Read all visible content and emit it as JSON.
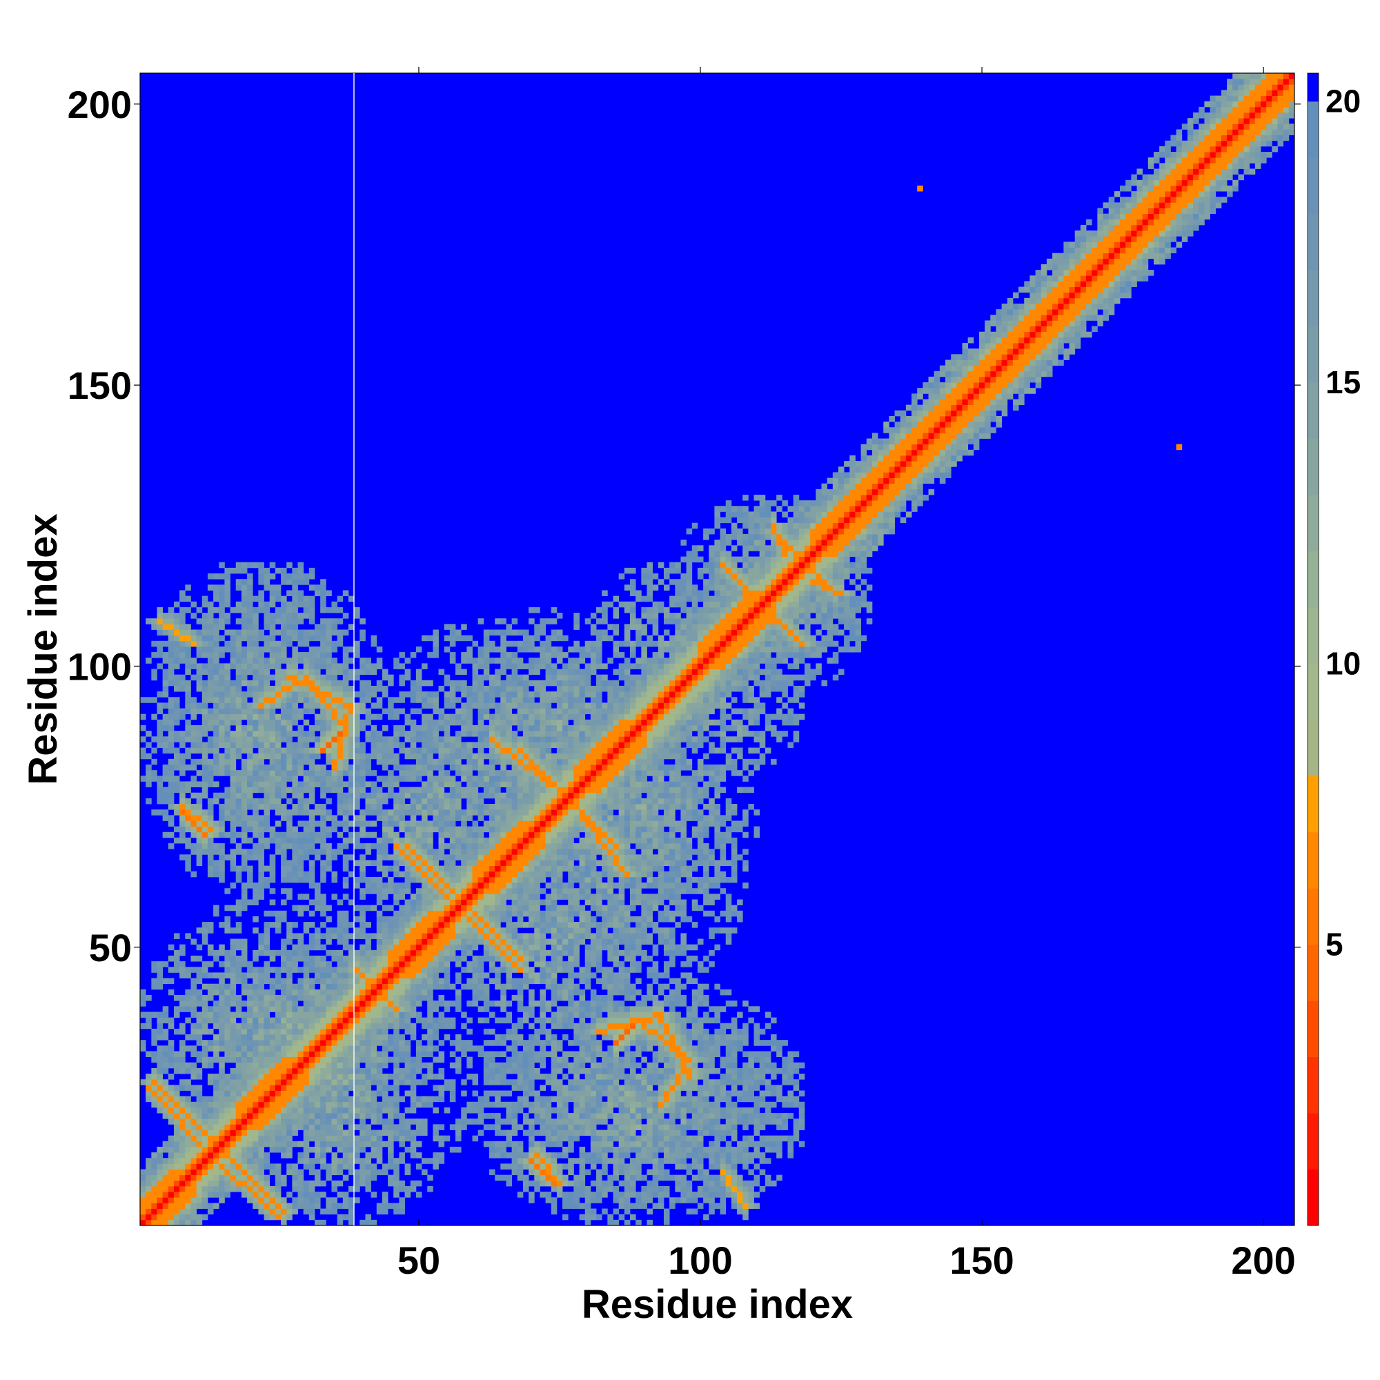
{
  "chart_data": {
    "type": "heatmap",
    "title": "",
    "xlabel": "Residue index",
    "ylabel": "Residue index",
    "n_residues": 205,
    "xlim": [
      1,
      205
    ],
    "ylim": [
      1,
      205
    ],
    "x_ticks": [
      50,
      100,
      150,
      200
    ],
    "y_ticks": [
      50,
      100,
      150,
      200
    ],
    "colorbar": {
      "range": [
        0,
        20.5
      ],
      "ticks": [
        5,
        10,
        15,
        20
      ],
      "levels": [
        {
          "from": 0,
          "to": 1,
          "color": "#ff0000"
        },
        {
          "from": 1,
          "to": 2,
          "color": "#ff1a00"
        },
        {
          "from": 2,
          "to": 3,
          "color": "#ff3300"
        },
        {
          "from": 3,
          "to": 4,
          "color": "#ff4d00"
        },
        {
          "from": 4,
          "to": 5,
          "color": "#ff6600"
        },
        {
          "from": 5,
          "to": 6,
          "color": "#ff7700"
        },
        {
          "from": 6,
          "to": 7,
          "color": "#ff8800"
        },
        {
          "from": 7,
          "to": 8,
          "color": "#ffa000"
        },
        {
          "from": 8,
          "to": 9,
          "color": "#a6b586"
        },
        {
          "from": 9,
          "to": 10,
          "color": "#a3b78c"
        },
        {
          "from": 10,
          "to": 11,
          "color": "#9db590"
        },
        {
          "from": 11,
          "to": 12,
          "color": "#96b196"
        },
        {
          "from": 12,
          "to": 13,
          "color": "#8fab9b"
        },
        {
          "from": 13,
          "to": 14,
          "color": "#88a6a0"
        },
        {
          "from": 14,
          "to": 15,
          "color": "#81a1a5"
        },
        {
          "from": 15,
          "to": 16,
          "color": "#7b9daa"
        },
        {
          "from": 16,
          "to": 17,
          "color": "#7599ae"
        },
        {
          "from": 17,
          "to": 18,
          "color": "#6f95b2"
        },
        {
          "from": 18,
          "to": 19,
          "color": "#6992b6"
        },
        {
          "from": 19,
          "to": 20,
          "color": "#6390ba"
        },
        {
          "from": 20,
          "to": 20.5,
          "color": "#0000ff"
        }
      ]
    },
    "background_color": "#0000ff",
    "contact_map": {
      "diagonal_band": {
        "from": 1,
        "to": 205
      },
      "helices": [
        {
          "start": 1,
          "end": 10
        },
        {
          "start": 18,
          "end": 30
        },
        {
          "start": 45,
          "end": 56
        },
        {
          "start": 60,
          "end": 72
        },
        {
          "start": 78,
          "end": 90
        },
        {
          "start": 100,
          "end": 113
        },
        {
          "start": 120,
          "end": 205
        }
      ],
      "strand_contacts": [
        {
          "i": [
            3,
            14
          ],
          "j": [
            26,
            15
          ],
          "color": "#ff8800"
        },
        {
          "i": [
            13,
            25
          ],
          "j": [
            13,
            2
          ],
          "color": "#ff8800"
        },
        {
          "i": [
            48,
            57
          ],
          "j": [
            68,
            59
          ],
          "color": "#ff8800"
        },
        {
          "i": [
            57,
            68
          ],
          "j": [
            57,
            46
          ],
          "color": "#ff8800"
        },
        {
          "i": [
            68,
            77
          ],
          "j": [
            85,
            76
          ],
          "color": "#ff8800"
        },
        {
          "i": [
            77,
            87
          ],
          "j": [
            76,
            63
          ],
          "color": "#ff8800"
        },
        {
          "i": [
            105,
            112
          ],
          "j": [
            117,
            110
          ],
          "color": "#ff8800"
        },
        {
          "i": [
            110,
            118
          ],
          "j": [
            111,
            104
          ],
          "color": "#ff8800"
        },
        {
          "i": [
            113,
            117
          ],
          "j": [
            124,
            120
          ],
          "color": "#ff8800"
        },
        {
          "i": [
            120,
            125
          ],
          "j": [
            115,
            113
          ],
          "color": "#ff8800"
        },
        {
          "i": [
            22,
            30
          ],
          "j": [
            93,
            98
          ],
          "color": "#ff8800"
        },
        {
          "i": [
            30,
            36
          ],
          "j": [
            98,
            90
          ],
          "color": "#ff8800"
        },
        {
          "i": [
            33,
            36
          ],
          "j": [
            85,
            88
          ],
          "color": "#ff6600"
        },
        {
          "i": [
            8,
            13
          ],
          "j": [
            75,
            71
          ],
          "color": "#ff8800"
        },
        {
          "i": [
            82,
            93
          ],
          "j": [
            35,
            38
          ],
          "color": "#ff8800"
        },
        {
          "i": [
            93,
            98
          ],
          "j": [
            38,
            27
          ],
          "color": "#ff8800"
        },
        {
          "i": [
            70,
            74
          ],
          "j": [
            12,
            8
          ],
          "color": "#ff7700"
        },
        {
          "i": [
            39,
            44
          ],
          "j": [
            46,
            42
          ],
          "color": "#ff8800"
        },
        {
          "i": [
            4,
            10
          ],
          "j": [
            108,
            104
          ],
          "color": "#ffa000"
        }
      ],
      "contact_blobs": [
        {
          "x": [
            1,
            40
          ],
          "y": [
            60,
            118
          ]
        },
        {
          "x": [
            1,
            52
          ],
          "y": [
            10,
            60
          ]
        },
        {
          "x": [
            20,
            48
          ],
          "y": [
            3,
            30
          ]
        },
        {
          "x": [
            40,
            90
          ],
          "y": [
            60,
            108
          ]
        },
        {
          "x": [
            60,
            118
          ],
          "y": [
            3,
            45
          ]
        },
        {
          "x": [
            52,
            95
          ],
          "y": [
            25,
            75
          ]
        },
        {
          "x": [
            70,
            110
          ],
          "y": [
            55,
            95
          ]
        },
        {
          "x": [
            95,
            130
          ],
          "y": [
            98,
            130
          ]
        },
        {
          "x": [
            85,
            118
          ],
          "y": [
            80,
            105
          ]
        }
      ],
      "isolated_contacts": [
        {
          "x": 139,
          "y": 185,
          "color": "#ff8800"
        },
        {
          "x": 185,
          "y": 139,
          "color": "#ff8800"
        }
      ]
    }
  }
}
